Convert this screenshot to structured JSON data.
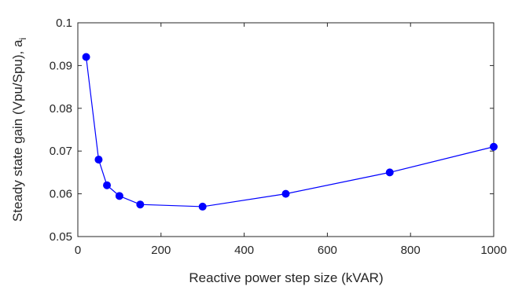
{
  "chart_data": {
    "type": "line",
    "title": "",
    "xlabel": "Reactive power step size (kVAR)",
    "ylabel": "Steady state gain (Vpu/Spu), a",
    "ylabel_subscript": "i",
    "xlim": [
      0,
      1000
    ],
    "ylim": [
      0.05,
      0.1
    ],
    "x_ticks": [
      0,
      200,
      400,
      600,
      800,
      1000
    ],
    "x_tick_labels": [
      "0",
      "200",
      "400",
      "600",
      "800",
      "1000"
    ],
    "y_ticks": [
      0.05,
      0.06,
      0.07,
      0.08,
      0.09,
      0.1
    ],
    "y_tick_labels": [
      "0.05",
      "0.06",
      "0.07",
      "0.08",
      "0.09",
      "0.1"
    ],
    "grid": false,
    "series": [
      {
        "color": "#0000ff",
        "marker": "circle",
        "x": [
          20,
          50,
          70,
          100,
          150,
          300,
          500,
          750,
          1000
        ],
        "y": [
          0.092,
          0.068,
          0.062,
          0.0595,
          0.0575,
          0.057,
          0.06,
          0.065,
          0.071
        ]
      }
    ]
  }
}
